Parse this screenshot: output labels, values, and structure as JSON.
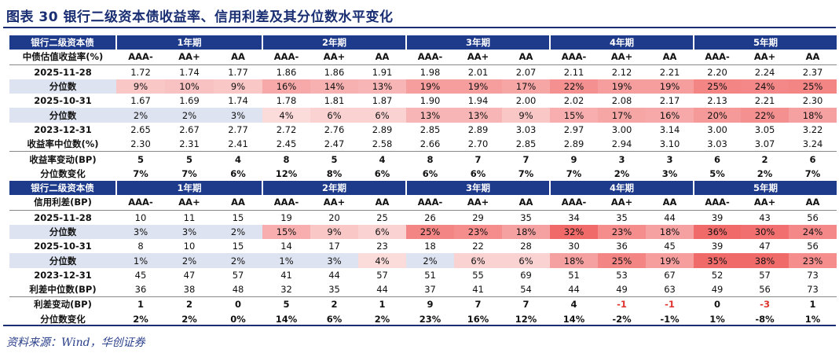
{
  "title": "图表 30   银行二级资本债收益率、信用利差及其分位数水平变化",
  "source": "资料来源：Wind，华创证券",
  "periods": [
    "1年期",
    "2年期",
    "3年期",
    "4年期",
    "5年期"
  ],
  "grades": [
    "AAA-",
    "AA+",
    "AA"
  ],
  "sections": [
    {
      "head_label": "银行二级资本债",
      "grade_row_label": "中债估值收益率(%)",
      "rows": [
        {
          "label": "2025-11-28",
          "cells": [
            "1.72",
            "1.74",
            "1.77",
            "1.86",
            "1.86",
            "1.91",
            "1.98",
            "2.01",
            "2.07",
            "2.11",
            "2.12",
            "2.21",
            "2.20",
            "2.24",
            "2.37"
          ],
          "style": "value",
          "topline": true
        },
        {
          "label": "分位数",
          "cells": [
            "9%",
            "10%",
            "9%",
            "16%",
            "14%",
            "13%",
            "19%",
            "19%",
            "17%",
            "22%",
            "19%",
            "19%",
            "25%",
            "24%",
            "25%"
          ],
          "style": "pct",
          "shaded": true
        },
        {
          "label": "2025-10-31",
          "cells": [
            "1.67",
            "1.69",
            "1.74",
            "1.78",
            "1.81",
            "1.87",
            "1.90",
            "1.94",
            "2.00",
            "2.02",
            "2.08",
            "2.17",
            "2.13",
            "2.21",
            "2.30"
          ],
          "style": "value"
        },
        {
          "label": "分位数",
          "cells": [
            "2%",
            "2%",
            "3%",
            "4%",
            "6%",
            "6%",
            "13%",
            "13%",
            "9%",
            "15%",
            "17%",
            "16%",
            "20%",
            "22%",
            "18%"
          ],
          "style": "pct",
          "shaded": true
        },
        {
          "label": "2023-12-31",
          "cells": [
            "2.65",
            "2.67",
            "2.77",
            "2.72",
            "2.76",
            "2.89",
            "2.85",
            "2.89",
            "3.03",
            "2.97",
            "3.00",
            "3.14",
            "3.00",
            "3.05",
            "3.22"
          ],
          "style": "value"
        },
        {
          "label": "收益率中位数(%)",
          "cells": [
            "2.30",
            "2.31",
            "2.41",
            "2.45",
            "2.47",
            "2.58",
            "2.66",
            "2.70",
            "2.85",
            "2.89",
            "2.94",
            "3.10",
            "3.03",
            "3.07",
            "3.24"
          ],
          "style": "value",
          "bottomline": true
        },
        {
          "label": "收益率变动(BP)",
          "cells": [
            "5",
            "5",
            "4",
            "8",
            "5",
            "4",
            "8",
            "7",
            "7",
            "9",
            "3",
            "3",
            "6",
            "2",
            "6"
          ],
          "style": "bold"
        },
        {
          "label": "分位数变化",
          "cells": [
            "7%",
            "7%",
            "6%",
            "12%",
            "8%",
            "6%",
            "6%",
            "6%",
            "7%",
            "7%",
            "2%",
            "3%",
            "5%",
            "2%",
            "7%"
          ],
          "style": "bold"
        }
      ]
    },
    {
      "head_label": "银行二级资本债",
      "grade_row_label": "信用利差(BP)",
      "rows": [
        {
          "label": "2025-11-28",
          "cells": [
            "10",
            "11",
            "15",
            "19",
            "20",
            "25",
            "26",
            "29",
            "35",
            "34",
            "35",
            "44",
            "39",
            "43",
            "56"
          ],
          "style": "value",
          "topline": true
        },
        {
          "label": "分位数",
          "cells": [
            "3%",
            "3%",
            "2%",
            "15%",
            "9%",
            "6%",
            "25%",
            "23%",
            "18%",
            "32%",
            "23%",
            "18%",
            "36%",
            "30%",
            "24%"
          ],
          "style": "pct",
          "shaded": true
        },
        {
          "label": "2025-10-31",
          "cells": [
            "8",
            "10",
            "15",
            "14",
            "17",
            "23",
            "18",
            "22",
            "28",
            "30",
            "36",
            "45",
            "39",
            "47",
            "56"
          ],
          "style": "value"
        },
        {
          "label": "分位数",
          "cells": [
            "1%",
            "2%",
            "2%",
            "1%",
            "3%",
            "4%",
            "2%",
            "6%",
            "6%",
            "18%",
            "25%",
            "19%",
            "35%",
            "38%",
            "23%"
          ],
          "style": "pct",
          "shaded": true
        },
        {
          "label": "2023-12-31",
          "cells": [
            "45",
            "47",
            "57",
            "41",
            "44",
            "57",
            "51",
            "55",
            "69",
            "51",
            "53",
            "67",
            "52",
            "57",
            "73"
          ],
          "style": "value"
        },
        {
          "label": "利差中位数(BP)",
          "cells": [
            "36",
            "38",
            "48",
            "32",
            "35",
            "44",
            "37",
            "41",
            "54",
            "44",
            "49",
            "63",
            "49",
            "56",
            "73"
          ],
          "style": "value",
          "bottomline": true
        },
        {
          "label": "利差变动(BP)",
          "cells": [
            "1",
            "2",
            "0",
            "5",
            "2",
            "1",
            "9",
            "7",
            "7",
            "4",
            "-1",
            "-1",
            "0",
            "-3",
            "1"
          ],
          "style": "bold"
        },
        {
          "label": "分位数变化",
          "cells": [
            "2%",
            "2%",
            "0%",
            "14%",
            "6%",
            "2%",
            "23%",
            "16%",
            "12%",
            "14%",
            "-2%",
            "-1%",
            "1%",
            "-8%",
            "1%"
          ],
          "style": "bold"
        }
      ]
    }
  ],
  "colors": {
    "header_bg": "#1e3a8a",
    "title": "#1a2f73",
    "shade_base": "#dde3f0",
    "heat": "#f05a5a",
    "negative": "#e0322d"
  }
}
